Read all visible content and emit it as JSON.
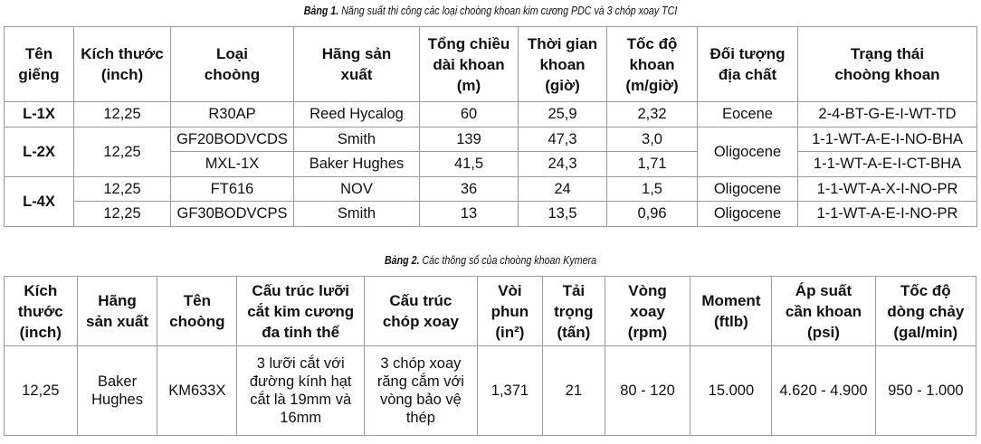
{
  "table1": {
    "caption_bold": "Bảng 1.",
    "caption_text": "Năng suất thi công các loại choòng khoan kim cương PDC và 3 chóp xoay TCI",
    "headers": [
      "Tên\ngiếng",
      "Kích thước\n(inch)",
      "Loại\nchoòng",
      "Hãng sản\nxuất",
      "Tổng chiều\ndài khoan\n(m)",
      "Thời gian\nkhoan\n(giờ)",
      "Tốc độ\nkhoan\n(m/giờ)",
      "Đối tượng\nđịa chất",
      "Trạng thái\nchoòng khoan"
    ],
    "wells": [
      "L-1X",
      "L-2X",
      "L-4X"
    ],
    "rows": [
      {
        "size": "12,25",
        "bit": "R30AP",
        "maker": "Reed Hycalog",
        "length": "60",
        "time": "25,9",
        "rate": "2,32",
        "geology": "Eocene",
        "status": "2-4-BT-G-E-I-WT-TD"
      },
      {
        "size": "",
        "bit": "GF20BODVCDS",
        "maker": "Smith",
        "length": "139",
        "time": "47,3",
        "rate": "3,0",
        "geology": "",
        "status": "1-1-WT-A-E-I-NO-BHA"
      },
      {
        "size": "",
        "bit": "MXL-1X",
        "maker": "Baker Hughes",
        "length": "41,5",
        "time": "24,3",
        "rate": "1,71",
        "geology": "",
        "status": "1-1-WT-A-E-I-CT-BHA"
      },
      {
        "size": "12,25",
        "bit": "FT616",
        "maker": "NOV",
        "length": "36",
        "time": "24",
        "rate": "1,5",
        "geology": "Oligocene",
        "status": "1-1-WT-A-X-I-NO-PR"
      },
      {
        "size": "12,25",
        "bit": "GF30BODVCPS",
        "maker": "Smith",
        "length": "13",
        "time": "13,5",
        "rate": "0,96",
        "geology": "Oligocene",
        "status": "1-1-WT-A-E-I-NO-PR"
      }
    ],
    "l2x_size": "12,25",
    "l2x_geology": "Oligocene"
  },
  "table2": {
    "caption_bold": "Bảng 2.",
    "caption_text": "Các thông số của choòng khoan Kymera",
    "headers": [
      "Kích\nthước\n(inch)",
      "Hãng\nsản xuất",
      "Tên\nchoòng",
      "Cấu trúc lưỡi\ncắt kim cương\nđa tinh thể",
      "Cấu trúc\nchóp xoay",
      "Vòi\nphun\n(in²)",
      "Tải\ntrọng\n(tấn)",
      "Vòng\nxoay\n(rpm)",
      "Moment\n(ftlb)",
      "Áp suất\ncần khoan\n(psi)",
      "Tốc độ\ndòng chảy\n(gal/min)"
    ],
    "row": {
      "size": "12,25",
      "maker": "Baker\nHughes",
      "name": "KM633X",
      "pdc": "3 lưỡi cắt với\nđường kính hạt\ncắt là 19mm và\n16mm",
      "cone": "3 chóp xoay\nrăng cắm với\nvòng bảo vệ\nthép",
      "nozzle": "1,371",
      "load": "21",
      "rpm": "80 - 120",
      "moment": "15.000",
      "pressure": "4.620 - 4.900",
      "flow": "950 - 1.000"
    }
  }
}
